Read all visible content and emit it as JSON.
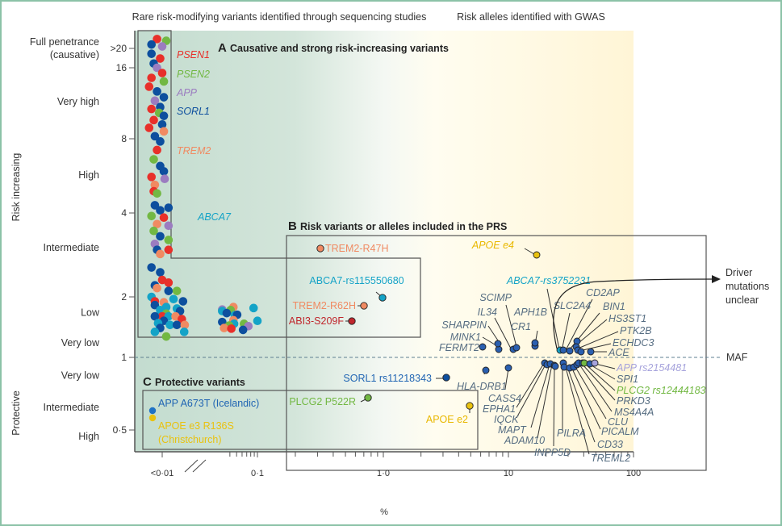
{
  "chart_data": {
    "type": "scatter",
    "title": "",
    "xlabel": "%",
    "ylabel_top": "Risk increasing",
    "ylabel_bottom": "Protective",
    "x_scale": "log",
    "xlim": [
      0.005,
      100
    ],
    "ylim": [
      0.35,
      24
    ],
    "x_ticks": [
      {
        "value": 0.007,
        "label": "<0·01"
      },
      {
        "value": 0.1,
        "label": "0·1"
      },
      {
        "value": 1,
        "label": "1·0"
      },
      {
        "value": 10,
        "label": "10"
      },
      {
        "value": 100,
        "label": "100"
      }
    ],
    "y_ticks": [
      {
        "value": 20,
        "label": ">20"
      },
      {
        "value": 16,
        "label": "16"
      },
      {
        "value": 8,
        "label": "8"
      },
      {
        "value": 4,
        "label": "4"
      },
      {
        "value": 2,
        "label": "2"
      },
      {
        "value": 1,
        "label": "1"
      },
      {
        "value": 0.5,
        "label": "0·5"
      }
    ],
    "y_categories": [
      {
        "label": "Full penetrance (causative)",
        "value": 20
      },
      {
        "label": "Very high",
        "value": 11.5
      },
      {
        "label": "High",
        "value": 5.7
      },
      {
        "label": "Intermediate",
        "value": 3.0
      },
      {
        "label": "Low",
        "value": 1.67
      },
      {
        "label": "Very low",
        "value": 1.18
      },
      {
        "label": "Very low",
        "value": 0.84
      },
      {
        "label": "Intermediate",
        "value": 0.62
      },
      {
        "label": "High",
        "value": 0.45
      }
    ],
    "header_left": "Rare risk-modifying variants identified through sequencing studies",
    "header_right": "Risk alleles identified with GWAS",
    "maf_label": "MAF",
    "driver_label": [
      "Driver",
      "mutations",
      "unclear"
    ],
    "panels": [
      {
        "letter": "A",
        "title": "Causative and strong risk-increasing variants"
      },
      {
        "letter": "B",
        "title": "Risk variants or alleles included in the PRS"
      },
      {
        "letter": "C",
        "title": "Protective variants"
      }
    ],
    "gene_legend": [
      {
        "gene": "PSEN1",
        "color": "#e8302a"
      },
      {
        "gene": "PSEN2",
        "color": "#72b843"
      },
      {
        "gene": "APP",
        "color": "#9b7cc0"
      },
      {
        "gene": "SORL1",
        "color": "#0d4f9e"
      },
      {
        "gene": "TREM2",
        "color": "#f08a62"
      },
      {
        "gene": "ABCA7",
        "color": "#14a3c7"
      }
    ],
    "rare_cluster_points": [
      {
        "gene": "PSEN1",
        "x": 0.0065,
        "y": 22.5
      },
      {
        "gene": "PSEN2",
        "x": 0.0075,
        "y": 22.0
      },
      {
        "gene": "SORL1",
        "x": 0.006,
        "y": 21.0
      },
      {
        "gene": "APP",
        "x": 0.007,
        "y": 20.5
      },
      {
        "gene": "SORL1",
        "x": 0.006,
        "y": 18.8
      },
      {
        "gene": "PSEN1",
        "x": 0.0068,
        "y": 17.8
      },
      {
        "gene": "SORL1",
        "x": 0.0062,
        "y": 16.8
      },
      {
        "gene": "APP",
        "x": 0.0065,
        "y": 16.0
      },
      {
        "gene": "PSEN1",
        "x": 0.007,
        "y": 15.2
      },
      {
        "gene": "PSEN1",
        "x": 0.006,
        "y": 14.5
      },
      {
        "gene": "PSEN2",
        "x": 0.0072,
        "y": 14.0
      },
      {
        "gene": "PSEN1",
        "x": 0.0058,
        "y": 13.3
      },
      {
        "gene": "SORL1",
        "x": 0.0065,
        "y": 12.7
      },
      {
        "gene": "SORL1",
        "x": 0.0072,
        "y": 12.0
      },
      {
        "gene": "APP",
        "x": 0.0063,
        "y": 11.6
      },
      {
        "gene": "SORL1",
        "x": 0.0068,
        "y": 10.9
      },
      {
        "gene": "PSEN1",
        "x": 0.006,
        "y": 10.7
      },
      {
        "gene": "PSEN2",
        "x": 0.0067,
        "y": 10.3
      },
      {
        "gene": "SORL1",
        "x": 0.0072,
        "y": 10.0
      },
      {
        "gene": "PSEN1",
        "x": 0.0062,
        "y": 9.6
      },
      {
        "gene": "SORL1",
        "x": 0.007,
        "y": 9.2
      },
      {
        "gene": "PSEN1",
        "x": 0.0058,
        "y": 8.9
      },
      {
        "gene": "TREM2",
        "x": 0.0072,
        "y": 8.6
      },
      {
        "gene": "SORL1",
        "x": 0.0063,
        "y": 8.2
      },
      {
        "gene": "SORL1",
        "x": 0.0068,
        "y": 7.8
      },
      {
        "gene": "PSEN1",
        "x": 0.0065,
        "y": 7.2
      },
      {
        "gene": "PSEN2",
        "x": 0.0062,
        "y": 6.6
      },
      {
        "gene": "SORL1",
        "x": 0.0068,
        "y": 6.2
      },
      {
        "gene": "SORL1",
        "x": 0.0072,
        "y": 5.9
      },
      {
        "gene": "PSEN1",
        "x": 0.006,
        "y": 5.6
      },
      {
        "gene": "APP",
        "x": 0.0073,
        "y": 5.5
      },
      {
        "gene": "TREM2",
        "x": 0.0063,
        "y": 5.2
      },
      {
        "gene": "PSEN1",
        "x": 0.0062,
        "y": 4.9
      },
      {
        "gene": "PSEN2",
        "x": 0.0065,
        "y": 4.8
      },
      {
        "gene": "SORL1",
        "x": 0.0063,
        "y": 4.3
      },
      {
        "gene": "SORL1",
        "x": 0.0068,
        "y": 4.1
      },
      {
        "gene": "SORL1",
        "x": 0.0078,
        "y": 4.2
      },
      {
        "gene": "PSEN2",
        "x": 0.006,
        "y": 3.9
      },
      {
        "gene": "PSEN1",
        "x": 0.0072,
        "y": 3.85
      },
      {
        "gene": "TREM2",
        "x": 0.0065,
        "y": 3.65
      },
      {
        "gene": "APP",
        "x": 0.0078,
        "y": 3.6
      },
      {
        "gene": "PSEN2",
        "x": 0.0062,
        "y": 3.45
      },
      {
        "gene": "SORL1",
        "x": 0.0068,
        "y": 3.3
      },
      {
        "gene": "PSEN2",
        "x": 0.0078,
        "y": 3.2
      },
      {
        "gene": "APP",
        "x": 0.0063,
        "y": 3.1
      },
      {
        "gene": "SORL1",
        "x": 0.0065,
        "y": 2.95
      },
      {
        "gene": "TREM2",
        "x": 0.0068,
        "y": 2.85
      },
      {
        "gene": "PSEN1",
        "x": 0.0078,
        "y": 2.95
      },
      {
        "gene": "SORL1",
        "x": 0.006,
        "y": 2.55
      },
      {
        "gene": "SORL1",
        "x": 0.0068,
        "y": 2.45
      },
      {
        "gene": "PSEN1",
        "x": 0.007,
        "y": 2.3
      },
      {
        "gene": "PSEN1",
        "x": 0.0078,
        "y": 2.25
      },
      {
        "gene": "SORL1",
        "x": 0.0063,
        "y": 2.2
      },
      {
        "gene": "TREM2",
        "x": 0.0065,
        "y": 2.15
      },
      {
        "gene": "SORL1",
        "x": 0.0078,
        "y": 2.1
      },
      {
        "gene": "PSEN2",
        "x": 0.009,
        "y": 2.1
      },
      {
        "gene": "ABCA7",
        "x": 0.006,
        "y": 2.0
      },
      {
        "gene": "PSEN1",
        "x": 0.0063,
        "y": 1.9
      },
      {
        "gene": "ABCA7",
        "x": 0.0085,
        "y": 1.95
      },
      {
        "gene": "SORL1",
        "x": 0.01,
        "y": 1.9
      },
      {
        "gene": "SORL1",
        "x": 0.0063,
        "y": 1.82
      },
      {
        "gene": "TREM2",
        "x": 0.0072,
        "y": 1.88
      },
      {
        "gene": "ABCA7",
        "x": 0.0075,
        "y": 1.78
      },
      {
        "gene": "ABCA7",
        "x": 0.0068,
        "y": 1.72
      },
      {
        "gene": "ABCA7",
        "x": 0.009,
        "y": 1.75
      },
      {
        "gene": "SORL1",
        "x": 0.0095,
        "y": 1.7
      },
      {
        "gene": "PSEN2",
        "x": 0.0075,
        "y": 1.65
      },
      {
        "gene": "PSEN1",
        "x": 0.007,
        "y": 1.6
      },
      {
        "gene": "SORL1",
        "x": 0.0063,
        "y": 1.6
      },
      {
        "gene": "ABCA7",
        "x": 0.0078,
        "y": 1.6
      },
      {
        "gene": "TREM2",
        "x": 0.0088,
        "y": 1.6
      },
      {
        "gene": "PSEN1",
        "x": 0.0098,
        "y": 1.55
      },
      {
        "gene": "SORL1",
        "x": 0.0072,
        "y": 1.52
      },
      {
        "gene": "ABCA7",
        "x": 0.0066,
        "y": 1.48
      },
      {
        "gene": "ABCA7",
        "x": 0.008,
        "y": 1.45
      },
      {
        "gene": "SORL1",
        "x": 0.009,
        "y": 1.45
      },
      {
        "gene": "TREM2",
        "x": 0.0103,
        "y": 1.45
      },
      {
        "gene": "SORL1",
        "x": 0.0068,
        "y": 1.4
      },
      {
        "gene": "ABCA7",
        "x": 0.0063,
        "y": 1.34
      },
      {
        "gene": "PSEN2",
        "x": 0.0075,
        "y": 1.27
      },
      {
        "gene": "ABCA7",
        "x": 0.0102,
        "y": 1.34
      },
      {
        "gene": "TREM2",
        "x": 0.045,
        "y": 1.78
      },
      {
        "gene": "APP",
        "x": 0.031,
        "y": 1.73
      },
      {
        "gene": "PSEN2",
        "x": 0.041,
        "y": 1.72
      },
      {
        "gene": "ABCA7",
        "x": 0.031,
        "y": 1.7
      },
      {
        "gene": "SORL1",
        "x": 0.036,
        "y": 1.66
      },
      {
        "gene": "ABCA7",
        "x": 0.047,
        "y": 1.62
      },
      {
        "gene": "SORL1",
        "x": 0.051,
        "y": 1.63
      },
      {
        "gene": "ABCA7",
        "x": 0.088,
        "y": 1.76
      },
      {
        "gene": "TREM2",
        "x": 0.045,
        "y": 1.53
      },
      {
        "gene": "SORL1",
        "x": 0.031,
        "y": 1.5
      },
      {
        "gene": "ABCA7",
        "x": 0.046,
        "y": 1.47
      },
      {
        "gene": "PSEN2",
        "x": 0.064,
        "y": 1.47
      },
      {
        "gene": "ABCA7",
        "x": 0.1,
        "y": 1.52
      },
      {
        "gene": "APP",
        "x": 0.074,
        "y": 1.43
      },
      {
        "gene": "PSEN2",
        "x": 0.039,
        "y": 1.44
      },
      {
        "gene": "TREM2",
        "x": 0.033,
        "y": 1.4
      },
      {
        "gene": "PSEN1",
        "x": 0.042,
        "y": 1.39
      },
      {
        "gene": "SORL1",
        "x": 0.062,
        "y": 1.37
      }
    ],
    "labeled_variants": [
      {
        "label": "TREM2-R47H",
        "x": 0.3,
        "y": 2.9,
        "color": "#f08a62",
        "label_color": "#f08a62",
        "group": "rare"
      },
      {
        "label": "ABCA7-rs115550680",
        "x": 1.0,
        "y": 1.7,
        "color": "#14a3c7",
        "label_color": "#14a3c7",
        "group": "rare"
      },
      {
        "label": "TREM2-R62H",
        "x": 0.7,
        "y": 1.6,
        "color": "#f08a62",
        "label_color": "#f08a62",
        "group": "rare"
      },
      {
        "label": "ABI3-S209F",
        "x": 0.55,
        "y": 1.45,
        "color": "#c0272d",
        "label_color": "#c0272d",
        "group": "rare"
      },
      {
        "label": "APOE e4",
        "x": 16,
        "y": 2.75,
        "color": "#e9c20f",
        "label_color": "#e9b800",
        "group": "gwas"
      },
      {
        "label": "SORL1 rs11218343",
        "x": 3.2,
        "y": 0.84,
        "color": "#0d4f9e",
        "label_color": "#1f64b3",
        "group": "rare"
      },
      {
        "label": "PLCG2 P522R",
        "x": 0.75,
        "y": 0.66,
        "color": "#72b843",
        "label_color": "#72b843",
        "group": "protective"
      },
      {
        "label": "APOE e2",
        "x": 4.9,
        "y": 0.63,
        "color": "#e9c20f",
        "label_color": "#e9b800",
        "group": "protective"
      },
      {
        "label": "APP A673T (Icelandic)",
        "x": 0.006,
        "y": 0.6,
        "color": "#1f72c4",
        "label_color": "#1f64b3",
        "group": "protective"
      },
      {
        "label": "APOE e3 R136S (Christchurch)",
        "x": 0.006,
        "y": 0.565,
        "color": "#e9c20f",
        "label_color": "#e9c20f",
        "group": "protective"
      },
      {
        "label": "ABCA7-rs3752231",
        "x": 24,
        "y": 1.08,
        "color": "#14a3c7",
        "label_color": "#14a3c7",
        "group": "gwas"
      },
      {
        "label": "FERMT2",
        "x": 6.2,
        "y": 1.13,
        "color": "#2a5fb0",
        "label_color": "#566d82",
        "group": "gwas"
      },
      {
        "label": "MINK1",
        "x": 8.0,
        "y": 1.17,
        "color": "#2a5fb0",
        "label_color": "#566d82",
        "group": "gwas"
      },
      {
        "label": "SHARPIN",
        "x": 8.0,
        "y": 1.12,
        "color": "#2a5fb0",
        "label_color": "#566d82",
        "group": "gwas"
      },
      {
        "label": "IL34",
        "x": 10.5,
        "y": 1.11,
        "color": "#2a5fb0",
        "label_color": "#566d82",
        "group": "gwas"
      },
      {
        "label": "SCIMP",
        "x": 11.0,
        "y": 1.12,
        "color": "#2a5fb0",
        "label_color": "#566d82",
        "group": "gwas"
      },
      {
        "label": "CR1",
        "x": 15.5,
        "y": 1.13,
        "color": "#2a5fb0",
        "label_color": "#566d82",
        "group": "gwas"
      },
      {
        "label": "APH1B",
        "x": 15.5,
        "y": 1.1,
        "color": "#2a5fb0",
        "label_color": "#566d82",
        "group": "gwas"
      },
      {
        "label": "SLC2A4",
        "x": 26,
        "y": 1.1,
        "color": "#2a5fb0",
        "label_color": "#566d82",
        "group": "gwas"
      },
      {
        "label": "CD2AP",
        "x": 27,
        "y": 1.2,
        "color": "#2a5fb0",
        "label_color": "#566d82",
        "group": "gwas"
      },
      {
        "label": "BIN1",
        "x": 30,
        "y": 1.09,
        "color": "#2a5fb0",
        "label_color": "#566d82",
        "group": "gwas"
      },
      {
        "label": "HS3ST1",
        "x": 34,
        "y": 1.12,
        "color": "#2a5fb0",
        "label_color": "#566d82",
        "group": "gwas"
      },
      {
        "label": "PTK2B",
        "x": 36,
        "y": 1.09,
        "color": "#2a5fb0",
        "label_color": "#566d82",
        "group": "gwas"
      },
      {
        "label": "ECHDC3",
        "x": 40,
        "y": 1.09,
        "color": "#2a5fb0",
        "label_color": "#566d82",
        "group": "gwas"
      },
      {
        "label": "ACE",
        "x": 46,
        "y": 1.09,
        "color": "#2a5fb0",
        "label_color": "#566d82",
        "group": "gwas"
      },
      {
        "label": "HLA-DRB1",
        "x": 6.5,
        "y": 0.87,
        "color": "#2a5fb0",
        "label_color": "#566d82",
        "group": "gwas"
      },
      {
        "label": "CASS4",
        "x": 10,
        "y": 0.88,
        "color": "#2a5fb0",
        "label_color": "#566d82",
        "group": "gwas"
      },
      {
        "label": "EPHA1",
        "x": 19,
        "y": 0.94,
        "color": "#2a5fb0",
        "label_color": "#566d82",
        "group": "gwas"
      },
      {
        "label": "IQCK",
        "x": 20,
        "y": 0.93,
        "color": "#2a5fb0",
        "label_color": "#566d82",
        "group": "gwas"
      },
      {
        "label": "MAPT",
        "x": 22,
        "y": 0.925,
        "color": "#2a5fb0",
        "label_color": "#566d82",
        "group": "gwas"
      },
      {
        "label": "ADAM10",
        "x": 23,
        "y": 0.93,
        "color": "#2a5fb0",
        "label_color": "#566d82",
        "group": "gwas"
      },
      {
        "label": "INPP5D",
        "x": 25,
        "y": 0.925,
        "color": "#2a5fb0",
        "label_color": "#566d82",
        "group": "gwas"
      },
      {
        "label": "PILRA",
        "x": 27,
        "y": 0.94,
        "color": "#2a5fb0",
        "label_color": "#566d82",
        "group": "gwas"
      },
      {
        "label": "TREML2",
        "x": 28,
        "y": 0.93,
        "color": "#2a5fb0",
        "label_color": "#566d82",
        "group": "gwas"
      },
      {
        "label": "CD33",
        "x": 31,
        "y": 0.91,
        "color": "#2a5fb0",
        "label_color": "#566d82",
        "group": "gwas"
      },
      {
        "label": "PICALM",
        "x": 33,
        "y": 0.92,
        "color": "#2a5fb0",
        "label_color": "#566d82",
        "group": "gwas"
      },
      {
        "label": "CLU",
        "x": 35,
        "y": 0.93,
        "color": "#2a5fb0",
        "label_color": "#566d82",
        "group": "gwas"
      },
      {
        "label": "MS4A4A",
        "x": 37,
        "y": 0.94,
        "color": "#2a5fb0",
        "label_color": "#566d82",
        "group": "gwas"
      },
      {
        "label": "PRKD3",
        "x": 39,
        "y": 0.935,
        "color": "#2a5fb0",
        "label_color": "#566d82",
        "group": "gwas"
      },
      {
        "label": "PLCG2 rs12444183",
        "x": 40,
        "y": 0.94,
        "color": "#72b843",
        "label_color": "#72b843",
        "group": "gwas"
      },
      {
        "label": "SPI1",
        "x": 44,
        "y": 0.935,
        "color": "#2a5fb0",
        "label_color": "#566d82",
        "group": "gwas"
      },
      {
        "label": "APP rs2154481",
        "x": 47,
        "y": 0.94,
        "color": "#a6a3dc",
        "label_color": "#a6a3dc",
        "group": "gwas"
      }
    ]
  }
}
